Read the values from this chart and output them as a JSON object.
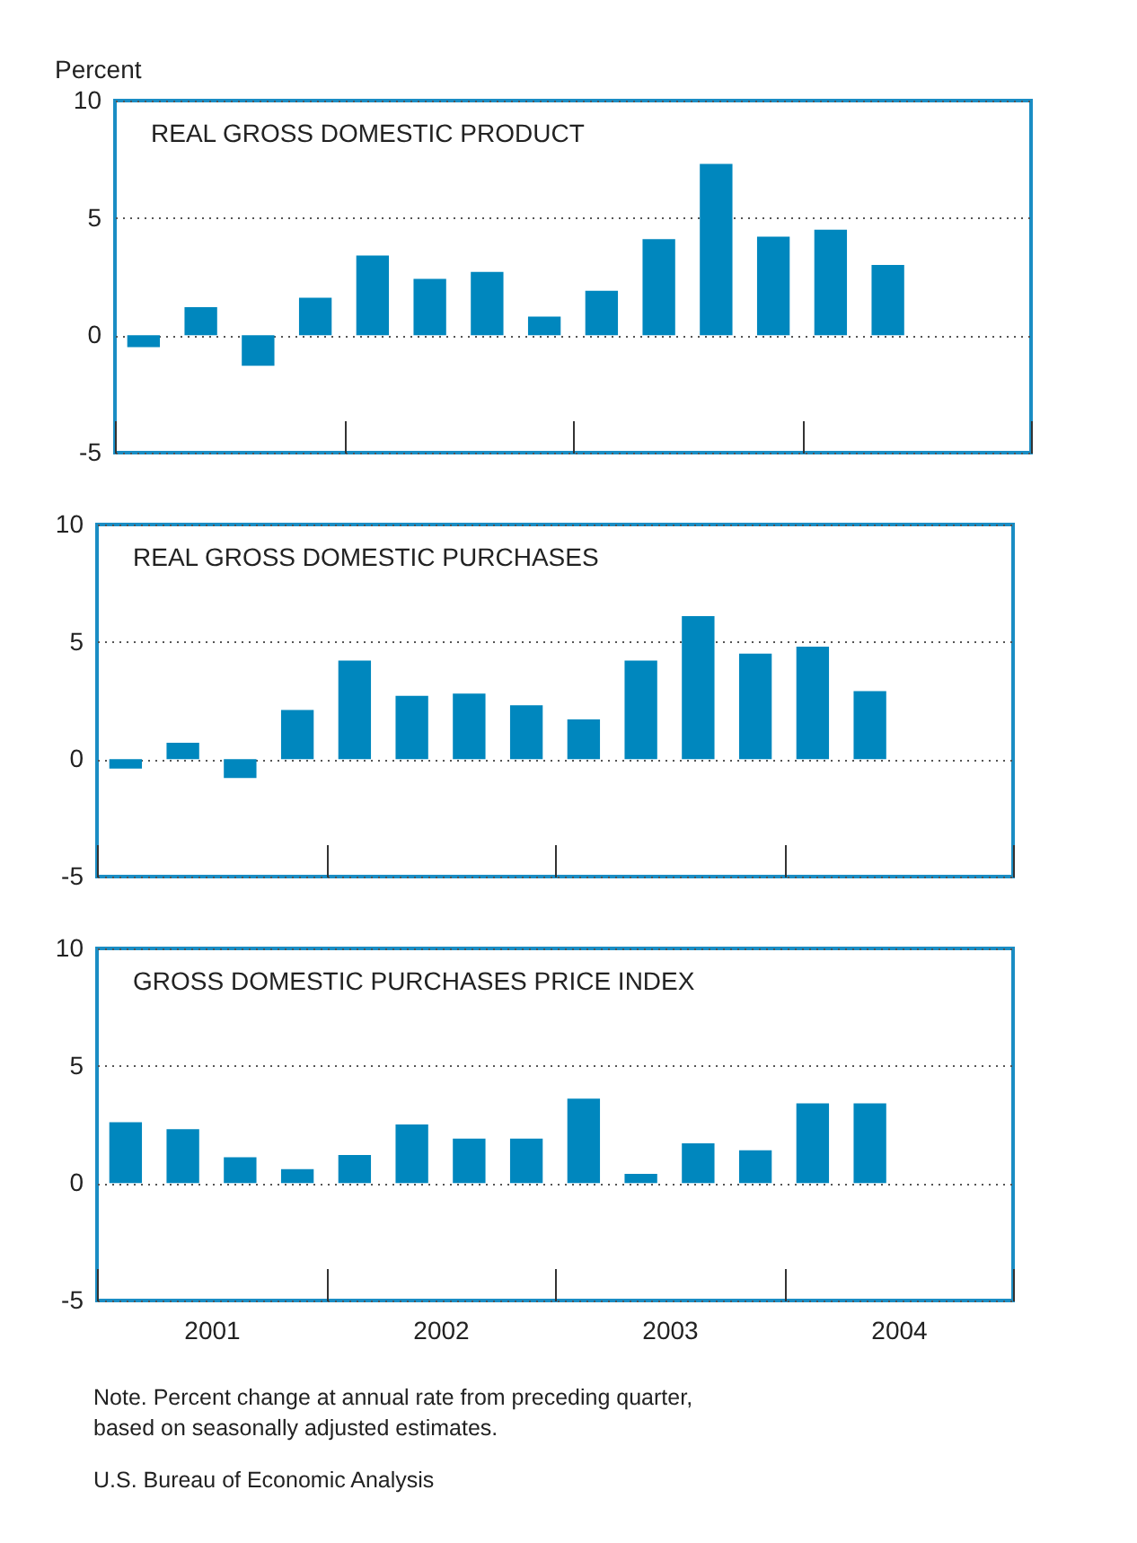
{
  "chart_data": [
    {
      "type": "bar",
      "title": "REAL GROSS DOMESTIC PRODUCT",
      "ylabel": "Percent",
      "categories": [
        "2001",
        "2002",
        "2003",
        "2004"
      ],
      "series": [
        {
          "color": "#0087be",
          "values": [
            -0.5,
            3.4,
            1.9,
            4.5
          ]
        },
        {
          "color": "#0087be",
          "values": [
            1.2,
            2.4,
            4.1,
            3.0
          ]
        },
        {
          "color": "#0087be",
          "values": [
            -1.3,
            2.7,
            7.3,
            null
          ]
        },
        {
          "color": "#0087be",
          "values": [
            1.6,
            0.8,
            4.2,
            null
          ]
        }
      ],
      "ylim": [
        -5,
        10
      ],
      "yticks": [
        -5,
        0,
        5,
        10
      ],
      "grid": "y",
      "tick_labels": "y"
    },
    {
      "type": "bar",
      "title": "REAL GROSS DOMESTIC PURCHASES",
      "categories": [
        "2001",
        "2002",
        "2003",
        "2004"
      ],
      "series": [
        {
          "color": "#0087be",
          "values": [
            -0.4,
            4.2,
            1.7,
            4.8
          ]
        },
        {
          "color": "#0087be",
          "values": [
            0.7,
            2.7,
            4.2,
            2.9
          ]
        },
        {
          "color": "#0087be",
          "values": [
            -0.8,
            2.8,
            6.1,
            null
          ]
        },
        {
          "color": "#0087be",
          "values": [
            2.1,
            2.3,
            4.5,
            null
          ]
        }
      ],
      "ylim": [
        -5,
        10
      ],
      "yticks": [
        -5,
        0,
        5,
        10
      ],
      "grid": "y",
      "tick_labels": "y"
    },
    {
      "type": "bar",
      "title": "GROSS DOMESTIC PURCHASES PRICE INDEX",
      "categories": [
        "2001",
        "2002",
        "2003",
        "2004"
      ],
      "series": [
        {
          "color": "#0087be",
          "values": [
            2.6,
            1.2,
            3.6,
            3.4
          ]
        },
        {
          "color": "#0087be",
          "values": [
            2.3,
            2.5,
            0.4,
            3.4
          ]
        },
        {
          "color": "#0087be",
          "values": [
            1.1,
            1.9,
            1.7,
            null
          ]
        },
        {
          "color": "#0087be",
          "values": [
            0.6,
            1.9,
            1.4,
            null
          ]
        }
      ],
      "ylim": [
        -5,
        10
      ],
      "yticks": [
        -5,
        0,
        5,
        10
      ],
      "grid": "y",
      "annotations": [
        "Note. Percent change at annual rate from preceding quarter, based on seasonally adjusted estimates.",
        "U.S. Bureau of Economic Analysis"
      ]
    }
  ]
}
